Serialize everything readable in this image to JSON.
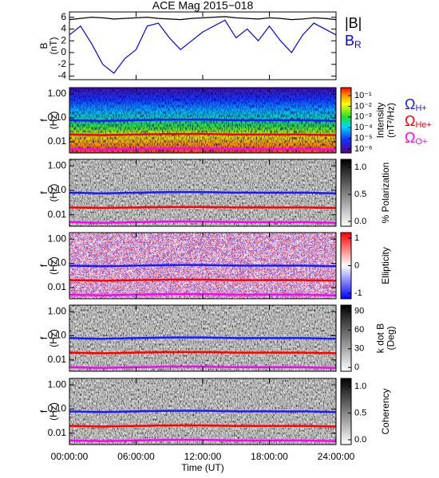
{
  "chart_data": [
    {
      "type": "line",
      "title": "ACE Mag 2015−018",
      "ylabel": [
        "B",
        "(nT)"
      ],
      "x": [
        0,
        1,
        2,
        3,
        4,
        5,
        6,
        7,
        8,
        9,
        10,
        11,
        12,
        13,
        14,
        15,
        16,
        17,
        18,
        19,
        20,
        21,
        22,
        23,
        24
      ],
      "xlim": [
        0,
        24
      ],
      "ylim": [
        -4.6,
        6.9
      ],
      "yticks": [
        -4,
        -2,
        0,
        2,
        4,
        6
      ],
      "series": [
        {
          "name": "|B|",
          "color": "#000000",
          "values": [
            5.6,
            5.8,
            6.0,
            5.9,
            5.7,
            5.8,
            5.9,
            6.0,
            5.8,
            5.7,
            5.6,
            5.8,
            5.9,
            6.0,
            6.1,
            5.9,
            5.8,
            5.7,
            5.9,
            5.8,
            5.6,
            5.7,
            5.9,
            5.8,
            5.6
          ]
        },
        {
          "name": "B",
          "name_sub": "R",
          "color": "#0000ff",
          "values": [
            3.0,
            4.5,
            1.5,
            -2.0,
            -3.5,
            -1.0,
            0.5,
            4.5,
            5.0,
            2.5,
            0.5,
            2.0,
            3.5,
            4.5,
            5.5,
            2.5,
            4.0,
            2.0,
            4.5,
            2.0,
            0.0,
            3.0,
            5.0,
            4.0,
            3.0
          ]
        }
      ]
    },
    {
      "type": "heatmap",
      "ylabel": [
        "f",
        "(Hz)"
      ],
      "log_y": true,
      "ylim": [
        0.0034,
        1.85
      ],
      "yticks": [
        {
          "value": 1,
          "label": "1.00"
        },
        {
          "value": 0.1,
          "label": "0.10"
        },
        {
          "value": 0.01,
          "label": "0.01"
        }
      ],
      "xlim": [
        0,
        24
      ],
      "colormap": "rainbow",
      "colorbar": {
        "label": [
          "Intensity",
          "(nT²/Hz)"
        ],
        "log": true,
        "lim": [
          4.2e-07,
          0.56
        ],
        "ticks": [
          {
            "value": 0.1,
            "label": "10⁻¹"
          },
          {
            "value": 0.01,
            "label": "10⁻²"
          },
          {
            "value": 0.001,
            "label": "10⁻³"
          },
          {
            "value": 0.0001,
            "label": "10⁻⁴"
          },
          {
            "value": 1e-05,
            "label": "10⁻⁵"
          },
          {
            "value": 1e-06,
            "label": "10⁻⁶"
          }
        ]
      },
      "x": [
        0,
        3,
        6,
        9,
        12,
        15,
        18,
        21,
        24
      ],
      "series": [
        {
          "name": "Ω",
          "name_sub": "H+",
          "color": "#1a1aff",
          "values": [
            0.08,
            0.075,
            0.08,
            0.085,
            0.085,
            0.08,
            0.08,
            0.08,
            0.075
          ]
        },
        {
          "name": "Ω",
          "name_sub": "He+",
          "color": "#ff0000",
          "values": [
            0.02,
            0.019,
            0.02,
            0.021,
            0.021,
            0.02,
            0.02,
            0.02,
            0.019
          ]
        },
        {
          "name": "Ω",
          "name_sub": "O+",
          "color": "#ff00ff",
          "values": [
            0.005,
            0.0047,
            0.005,
            0.0053,
            0.0053,
            0.005,
            0.005,
            0.005,
            0.0047
          ]
        }
      ]
    },
    {
      "type": "heatmap",
      "ylabel": [
        "f",
        "(Hz)"
      ],
      "log_y": true,
      "ylim": [
        0.0034,
        1.85
      ],
      "yticks": [
        {
          "value": 1,
          "label": "1.00"
        },
        {
          "value": 0.1,
          "label": "0.10"
        },
        {
          "value": 0.01,
          "label": "0.01"
        }
      ],
      "xlim": [
        0,
        24
      ],
      "colormap": "gray",
      "colorbar": {
        "label": [
          "% Polarization"
        ],
        "lim": [
          -0.09,
          1.15
        ],
        "ticks": [
          {
            "value": 1,
            "label": "1.0"
          },
          0.5,
          {
            "value": 0,
            "label": "0.0"
          }
        ]
      }
    },
    {
      "type": "heatmap",
      "ylabel": [
        "f",
        "(Hz)"
      ],
      "log_y": true,
      "ylim": [
        0.0034,
        1.85
      ],
      "yticks": [
        {
          "value": 1,
          "label": "1.00"
        },
        {
          "value": 0.1,
          "label": "0.10"
        },
        {
          "value": 0.01,
          "label": "0.01"
        }
      ],
      "xlim": [
        0,
        24
      ],
      "colormap": "bwr",
      "colorbar": {
        "label": [
          "Ellipticity"
        ],
        "lim": [
          -1.2,
          1.2
        ],
        "ticks": [
          1,
          0,
          -1
        ]
      }
    },
    {
      "type": "heatmap",
      "ylabel": [
        "f",
        "(Hz)"
      ],
      "log_y": true,
      "ylim": [
        0.0034,
        1.85
      ],
      "yticks": [
        {
          "value": 1,
          "label": "1.00"
        },
        {
          "value": 0.1,
          "label": "0.10"
        },
        {
          "value": 0.01,
          "label": "0.01"
        }
      ],
      "xlim": [
        0,
        24
      ],
      "colormap": "gray",
      "colorbar": {
        "label": [
          "k dot B",
          "(Deg)"
        ],
        "lim": [
          -6,
          100
        ],
        "ticks": [
          90,
          60,
          30,
          0
        ]
      }
    },
    {
      "type": "heatmap",
      "ylabel": [
        "f",
        "(Hz)"
      ],
      "log_y": true,
      "ylim": [
        0.0034,
        1.85
      ],
      "yticks": [
        {
          "value": 1,
          "label": "1.00"
        },
        {
          "value": 0.1,
          "label": "0.10"
        },
        {
          "value": 0.01,
          "label": "0.01"
        }
      ],
      "xlim": [
        0,
        24
      ],
      "colormap": "gray",
      "colorbar": {
        "label": [
          "Coherency"
        ],
        "lim": [
          -0.09,
          1.15
        ],
        "ticks": [
          {
            "value": 1,
            "label": "1.0"
          },
          0.5,
          {
            "value": 0,
            "label": "0.0"
          }
        ]
      },
      "xlabel": "Time (UT)",
      "xticks": [
        {
          "value": 0,
          "label": "00:00:00"
        },
        {
          "value": 6,
          "label": "06:00:00"
        },
        {
          "value": 12,
          "label": "12:00:00"
        },
        {
          "value": 18,
          "label": "18:00:00"
        },
        {
          "value": 24,
          "label": "24:00:00"
        }
      ]
    }
  ]
}
